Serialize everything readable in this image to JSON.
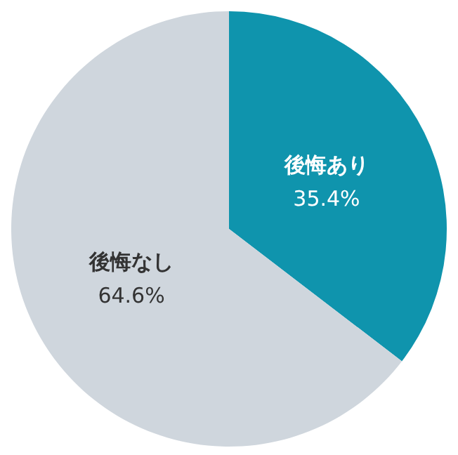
{
  "chart_data": {
    "type": "pie",
    "categories": [
      "後悔あり",
      "後悔なし"
    ],
    "values": [
      35.4,
      64.6
    ],
    "colors": [
      "#0f94ad",
      "#cfd6dd"
    ],
    "value_labels": [
      "35.4%",
      "64.6%"
    ]
  }
}
